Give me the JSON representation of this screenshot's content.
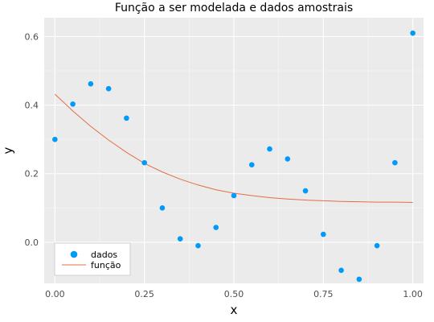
{
  "chart_data": {
    "type": "scatter",
    "title": "Função a ser modelada e dados amostrais",
    "xlabel": "x",
    "ylabel": "y",
    "xlim": [
      -0.03,
      1.03
    ],
    "ylim": [
      -0.12,
      0.655
    ],
    "xticks": [
      0.0,
      0.25,
      0.5,
      0.75,
      1.0
    ],
    "xtick_labels": [
      "0.00",
      "0.25",
      "0.50",
      "0.75",
      "1.00"
    ],
    "yticks": [
      0.0,
      0.2,
      0.4,
      0.6
    ],
    "ytick_labels": [
      "0.0",
      "0.2",
      "0.4",
      "0.6"
    ],
    "grid": true,
    "legend_position": "bottom-left",
    "series": [
      {
        "name": "dados",
        "kind": "scatter",
        "color": "#009AF9",
        "x": [
          0.0,
          0.05,
          0.1,
          0.15,
          0.2,
          0.25,
          0.3,
          0.35,
          0.4,
          0.45,
          0.5,
          0.55,
          0.6,
          0.65,
          0.7,
          0.75,
          0.8,
          0.85,
          0.9,
          0.95,
          1.0
        ],
        "y": [
          0.3,
          0.403,
          0.462,
          0.448,
          0.362,
          0.232,
          0.1,
          0.01,
          -0.01,
          0.043,
          0.136,
          0.226,
          0.272,
          0.243,
          0.15,
          0.023,
          -0.082,
          -0.108,
          -0.01,
          0.232,
          0.61
        ]
      },
      {
        "name": "função",
        "kind": "line",
        "color": "#E26F46",
        "x": [
          0.0,
          0.05,
          0.1,
          0.15,
          0.2,
          0.25,
          0.3,
          0.35,
          0.4,
          0.45,
          0.5,
          0.55,
          0.6,
          0.65,
          0.7,
          0.75,
          0.8,
          0.85,
          0.9,
          0.95,
          1.0
        ],
        "y": [
          0.432,
          0.383,
          0.338,
          0.298,
          0.262,
          0.23,
          0.205,
          0.184,
          0.167,
          0.153,
          0.143,
          0.136,
          0.13,
          0.126,
          0.123,
          0.121,
          0.119,
          0.118,
          0.117,
          0.117,
          0.116
        ]
      }
    ]
  }
}
